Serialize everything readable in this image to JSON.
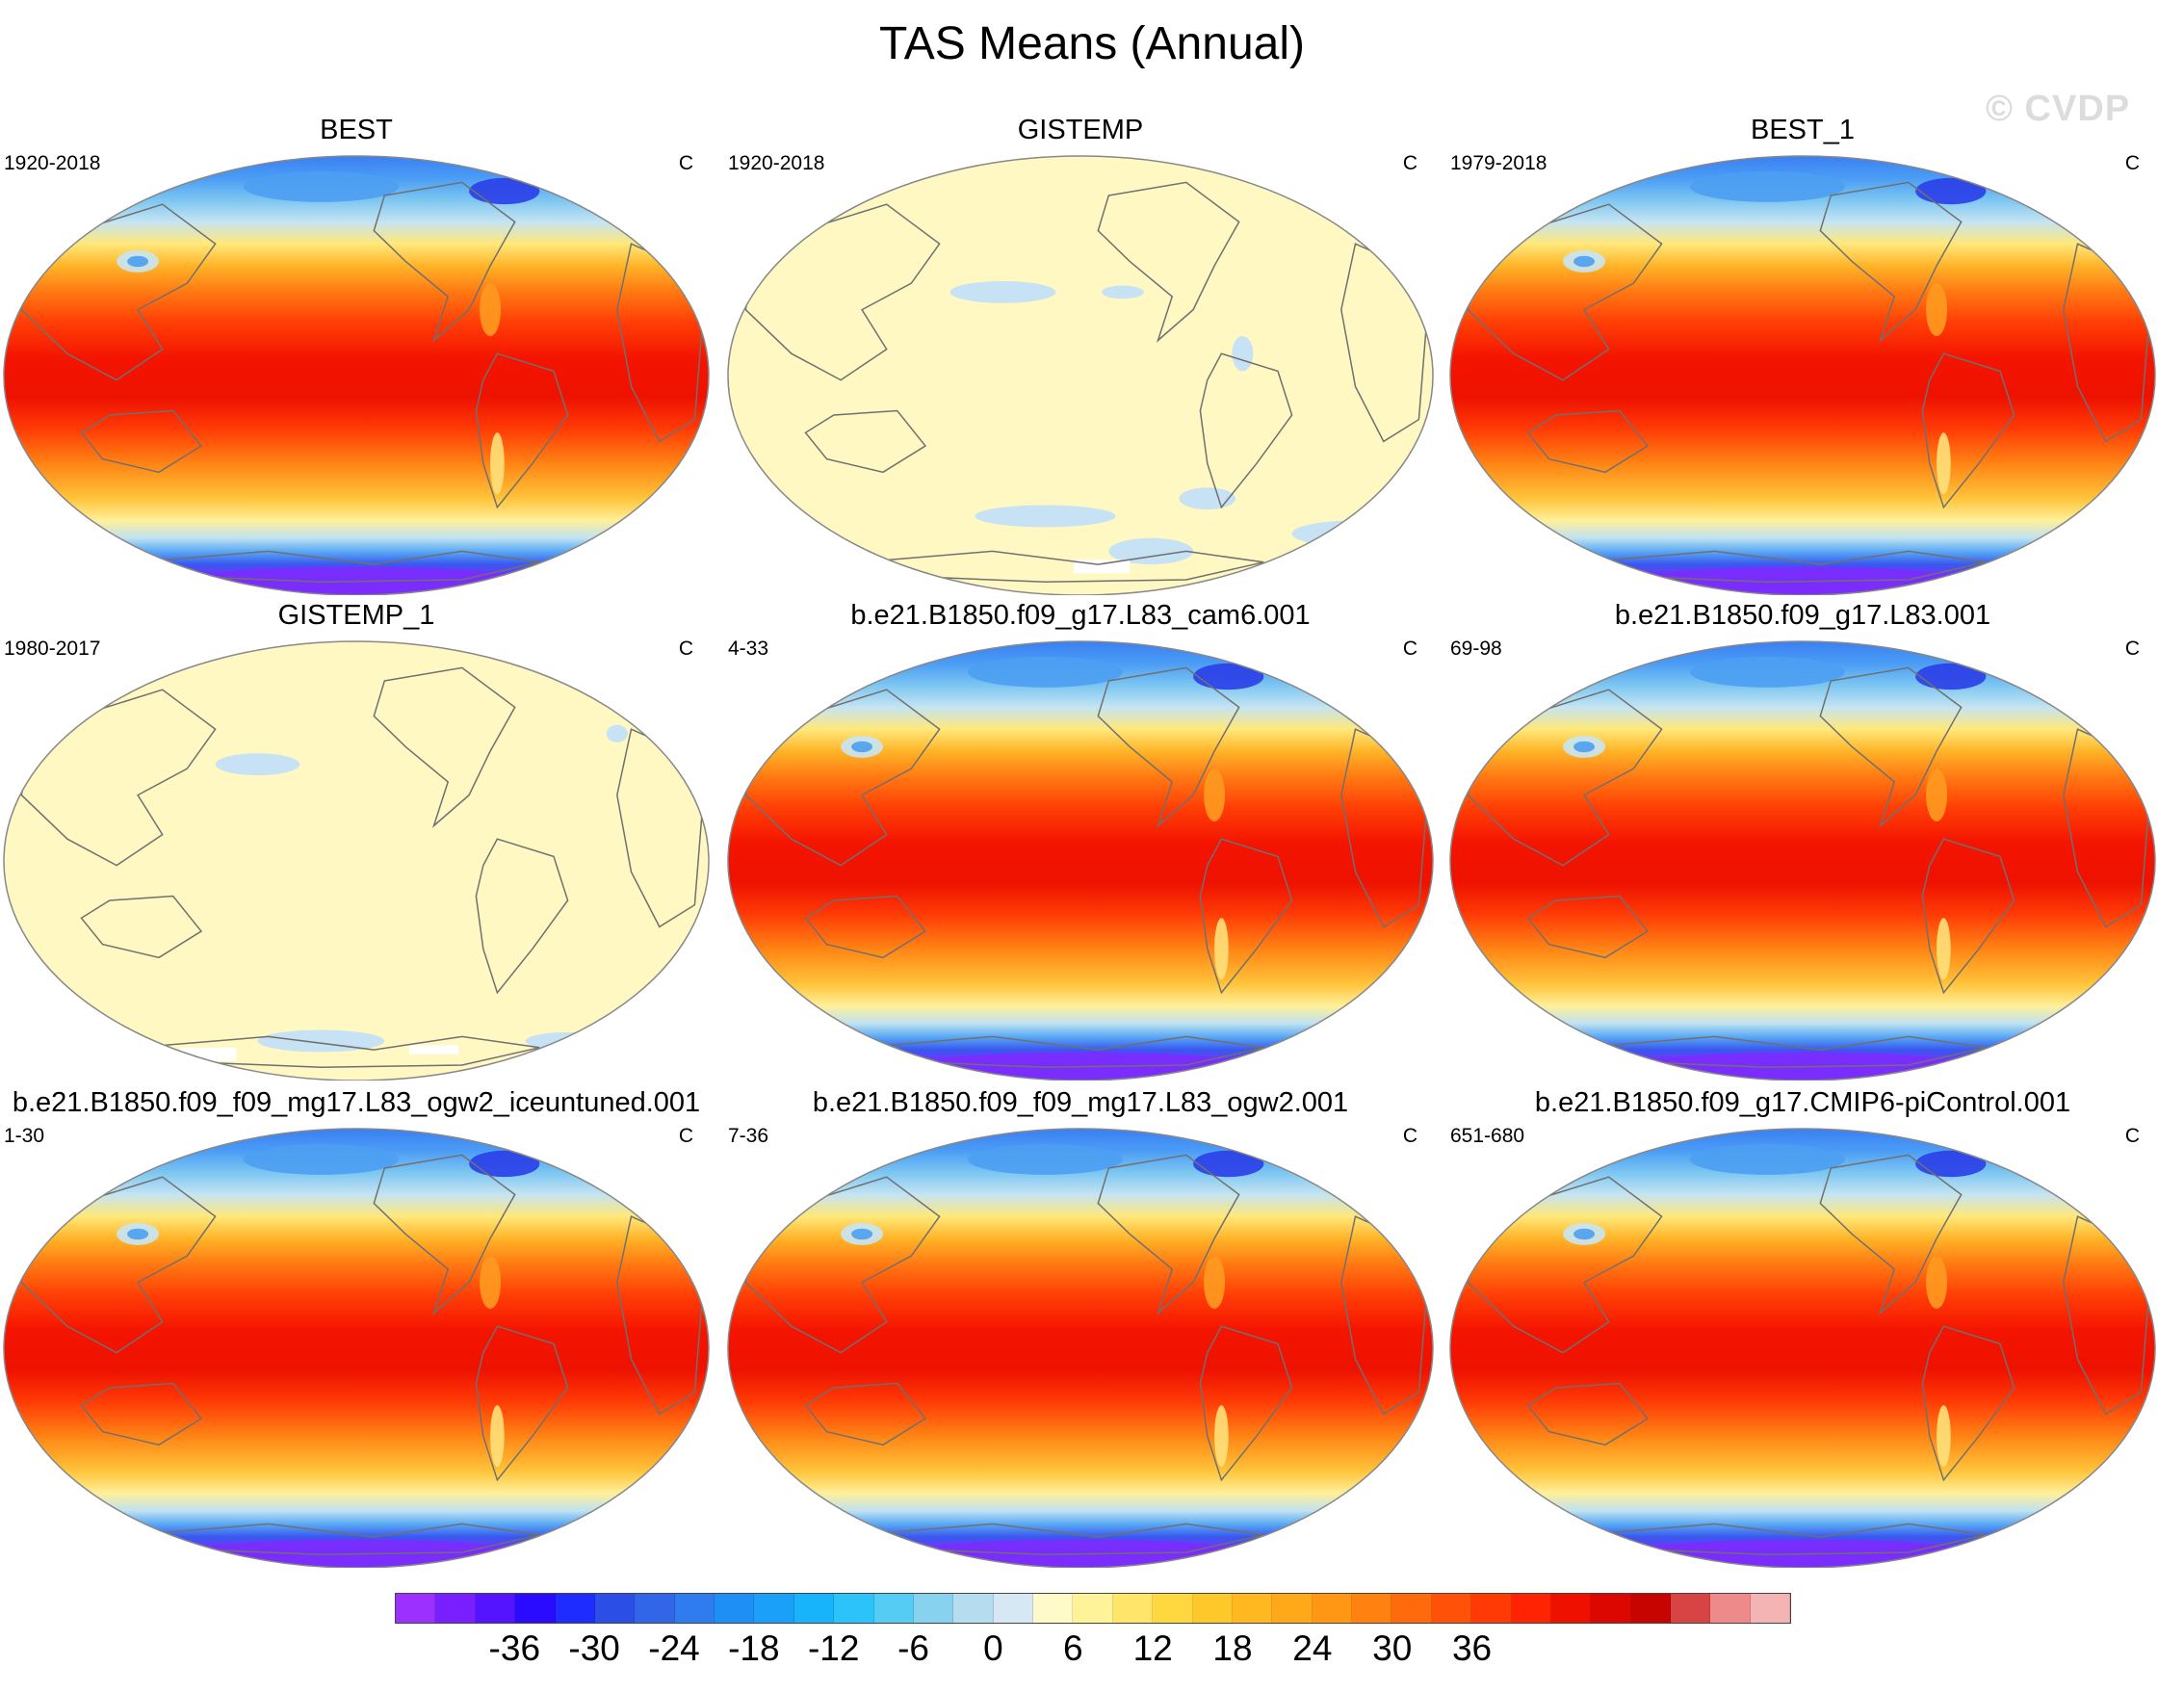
{
  "title": "TAS Means (Annual)",
  "watermark": "© CVDP",
  "units": "C",
  "panels": [
    {
      "name": "BEST",
      "period": "1920-2018",
      "units": "C",
      "field": "full"
    },
    {
      "name": "GISTEMP",
      "period": "1920-2018",
      "units": "C",
      "field": "sparse"
    },
    {
      "name": "BEST_1",
      "period": "1979-2018",
      "units": "C",
      "field": "full"
    },
    {
      "name": "GISTEMP_1",
      "period": "1980-2017",
      "units": "C",
      "field": "sparse"
    },
    {
      "name": "b.e21.B1850.f09_g17.L83_cam6.001",
      "period": "4-33",
      "units": "C",
      "field": "full"
    },
    {
      "name": "b.e21.B1850.f09_g17.L83.001",
      "period": "69-98",
      "units": "C",
      "field": "full"
    },
    {
      "name": "b.e21.B1850.f09_f09_mg17.L83_ogw2_iceuntuned.001",
      "period": "1-30",
      "units": "C",
      "field": "full"
    },
    {
      "name": "b.e21.B1850.f09_f09_mg17.L83_ogw2.001",
      "period": "7-36",
      "units": "C",
      "field": "full"
    },
    {
      "name": "b.e21.B1850.f09_g17.CMIP6-piControl.001",
      "period": "651-680",
      "units": "C",
      "field": "full"
    }
  ],
  "colorbar": {
    "tick_labels": [
      "-36",
      "-30",
      "-24",
      "-18",
      "-12",
      "-6",
      "0",
      "6",
      "12",
      "18",
      "24",
      "30",
      "36"
    ],
    "colors": [
      "#9b30ff",
      "#7a1fff",
      "#5414ff",
      "#2b0bff",
      "#1e2cff",
      "#2a4ee6",
      "#3266e8",
      "#2f7cf0",
      "#1e8ff5",
      "#1aa0f8",
      "#18b4fb",
      "#2cc3fb",
      "#55ccf4",
      "#87d2ee",
      "#b6dcf0",
      "#d6e8f4",
      "#fffbc8",
      "#fff39a",
      "#ffe66a",
      "#ffd840",
      "#ffc82a",
      "#ffb820",
      "#ffa818",
      "#ff9614",
      "#ff8210",
      "#ff6a0c",
      "#ff5208",
      "#ff3a05",
      "#ff2203",
      "#f01000",
      "#dc0800",
      "#c80400",
      "#d84444",
      "#ee8a8a",
      "#f5b4b4"
    ]
  },
  "map_colors": {
    "ocean_outline": "#888888",
    "coast": "#707070",
    "sparse_fill": "#fff8c2",
    "sparse_blue": "#c6e2f4"
  }
}
